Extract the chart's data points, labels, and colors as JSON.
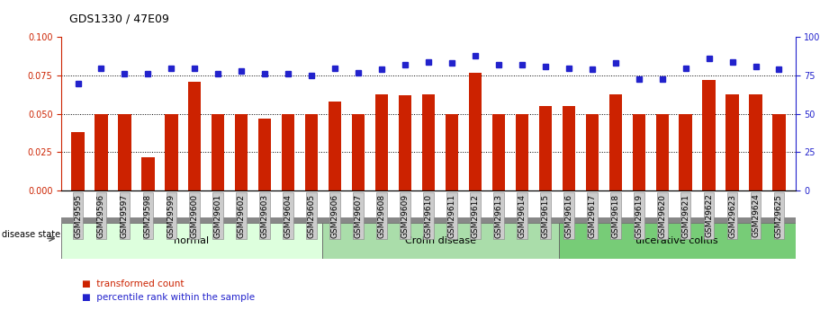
{
  "title": "GDS1330 / 47E09",
  "samples": [
    "GSM29595",
    "GSM29596",
    "GSM29597",
    "GSM29598",
    "GSM29599",
    "GSM29600",
    "GSM29601",
    "GSM29602",
    "GSM29603",
    "GSM29604",
    "GSM29605",
    "GSM29606",
    "GSM29607",
    "GSM29608",
    "GSM29609",
    "GSM29610",
    "GSM29611",
    "GSM29612",
    "GSM29613",
    "GSM29614",
    "GSM29615",
    "GSM29616",
    "GSM29617",
    "GSM29618",
    "GSM29619",
    "GSM29620",
    "GSM29621",
    "GSM29622",
    "GSM29623",
    "GSM29624",
    "GSM29625"
  ],
  "bar_values": [
    0.038,
    0.05,
    0.05,
    0.022,
    0.05,
    0.071,
    0.05,
    0.05,
    0.047,
    0.05,
    0.05,
    0.058,
    0.05,
    0.063,
    0.062,
    0.063,
    0.05,
    0.077,
    0.05,
    0.05,
    0.055,
    0.055,
    0.05,
    0.063,
    0.05,
    0.05,
    0.05,
    0.072,
    0.063,
    0.063,
    0.05
  ],
  "blue_values": [
    70,
    80,
    76,
    76,
    80,
    80,
    76,
    78,
    76,
    76,
    75,
    80,
    77,
    79,
    82,
    84,
    83,
    88,
    82,
    82,
    81,
    80,
    79,
    83,
    73,
    73,
    80,
    86,
    84,
    81,
    79
  ],
  "bar_color": "#cc2200",
  "blue_color": "#2222cc",
  "group_colors": [
    "#ddffdd",
    "#aaddaa",
    "#77cc77"
  ],
  "group_labels": [
    "normal",
    "Crohn disease",
    "ulcerative colitis"
  ],
  "group_ranges": [
    [
      0,
      10
    ],
    [
      11,
      20
    ],
    [
      21,
      30
    ]
  ],
  "ylim_left": [
    0,
    0.1
  ],
  "ylim_right": [
    0,
    100
  ],
  "yticks_left": [
    0,
    0.025,
    0.05,
    0.075,
    0.1
  ],
  "yticks_right": [
    0,
    25,
    50,
    75,
    100
  ],
  "hlines": [
    0.025,
    0.05,
    0.075
  ],
  "legend_items": [
    "transformed count",
    "percentile rank within the sample"
  ],
  "disease_state_label": "disease state",
  "xticklabel_bg": "#cccccc",
  "title_fontsize": 9,
  "tick_fontsize": 6.5,
  "group_fontsize": 8,
  "legend_fontsize": 7.5
}
